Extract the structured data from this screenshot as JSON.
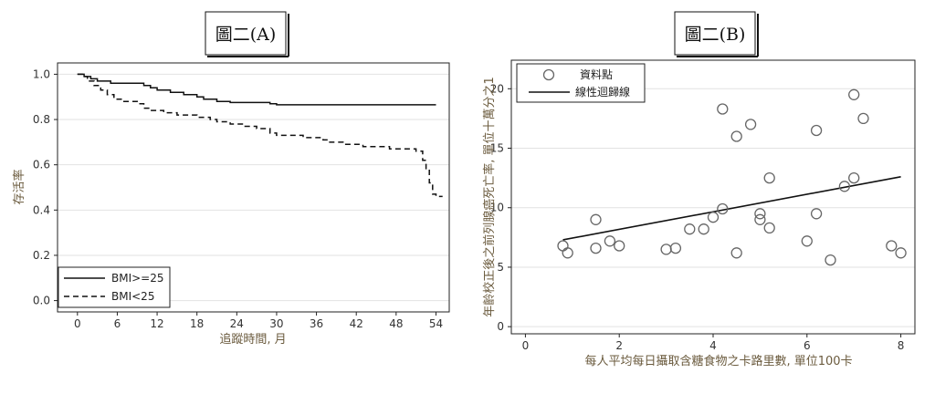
{
  "chart_data": [
    {
      "type": "line",
      "title": "圖二(A)",
      "xlabel": "追蹤時間, 月",
      "ylabel": "存活率",
      "xlim": [
        -3,
        56
      ],
      "ylim": [
        -0.05,
        1.05
      ],
      "x_ticks": [
        0,
        6,
        12,
        18,
        24,
        30,
        36,
        42,
        48,
        54
      ],
      "y_ticks": [
        0.0,
        0.2,
        0.4,
        0.6,
        0.8,
        1.0
      ],
      "y_tick_labels": [
        "0.0",
        "0.2",
        "0.4",
        "0.6",
        "0.8",
        "1.0"
      ],
      "grid": true,
      "legend_position": "bottom-left",
      "series": [
        {
          "name": "BMI>=25",
          "style": "solid",
          "points": [
            [
              0,
              1.0
            ],
            [
              1,
              1.0
            ],
            [
              1,
              0.99
            ],
            [
              2,
              0.99
            ],
            [
              2,
              0.98
            ],
            [
              3,
              0.98
            ],
            [
              3,
              0.97
            ],
            [
              5,
              0.97
            ],
            [
              5,
              0.96
            ],
            [
              10,
              0.96
            ],
            [
              10,
              0.95
            ],
            [
              11,
              0.95
            ],
            [
              11,
              0.94
            ],
            [
              12,
              0.94
            ],
            [
              12,
              0.93
            ],
            [
              14,
              0.93
            ],
            [
              14,
              0.92
            ],
            [
              16,
              0.92
            ],
            [
              16,
              0.91
            ],
            [
              18,
              0.91
            ],
            [
              18,
              0.9
            ],
            [
              19,
              0.9
            ],
            [
              19,
              0.89
            ],
            [
              21,
              0.89
            ],
            [
              21,
              0.88
            ],
            [
              23,
              0.88
            ],
            [
              23,
              0.875
            ],
            [
              29,
              0.875
            ],
            [
              29,
              0.87
            ],
            [
              30,
              0.87
            ],
            [
              30,
              0.865
            ],
            [
              54,
              0.865
            ]
          ]
        },
        {
          "name": "BMI<25",
          "style": "dashed",
          "points": [
            [
              0,
              1.0
            ],
            [
              1,
              1.0
            ],
            [
              1,
              0.99
            ],
            [
              1.5,
              0.99
            ],
            [
              1.5,
              0.97
            ],
            [
              2.5,
              0.97
            ],
            [
              2.5,
              0.95
            ],
            [
              3.5,
              0.95
            ],
            [
              3.5,
              0.93
            ],
            [
              4.5,
              0.93
            ],
            [
              4.5,
              0.91
            ],
            [
              5.5,
              0.91
            ],
            [
              5.5,
              0.89
            ],
            [
              7,
              0.89
            ],
            [
              7,
              0.88
            ],
            [
              9,
              0.88
            ],
            [
              9,
              0.87
            ],
            [
              10,
              0.87
            ],
            [
              10,
              0.85
            ],
            [
              11,
              0.85
            ],
            [
              11,
              0.84
            ],
            [
              13,
              0.84
            ],
            [
              13,
              0.83
            ],
            [
              15,
              0.83
            ],
            [
              15,
              0.82
            ],
            [
              18,
              0.82
            ],
            [
              18,
              0.81
            ],
            [
              20,
              0.81
            ],
            [
              20,
              0.8
            ],
            [
              21,
              0.8
            ],
            [
              21,
              0.79
            ],
            [
              23,
              0.79
            ],
            [
              23,
              0.78
            ],
            [
              25,
              0.78
            ],
            [
              25,
              0.77
            ],
            [
              27,
              0.77
            ],
            [
              27,
              0.76
            ],
            [
              29,
              0.76
            ],
            [
              29,
              0.74
            ],
            [
              30,
              0.74
            ],
            [
              30,
              0.73
            ],
            [
              34,
              0.73
            ],
            [
              34,
              0.72
            ],
            [
              37,
              0.72
            ],
            [
              37,
              0.71
            ],
            [
              38,
              0.71
            ],
            [
              38,
              0.7
            ],
            [
              40,
              0.7
            ],
            [
              40,
              0.69
            ],
            [
              43,
              0.69
            ],
            [
              43,
              0.68
            ],
            [
              47,
              0.68
            ],
            [
              47,
              0.67
            ],
            [
              51,
              0.67
            ],
            [
              51,
              0.66
            ],
            [
              52,
              0.66
            ],
            [
              52,
              0.62
            ],
            [
              52.5,
              0.62
            ],
            [
              52.5,
              0.58
            ],
            [
              53,
              0.58
            ],
            [
              53,
              0.52
            ],
            [
              53.5,
              0.52
            ],
            [
              53.5,
              0.47
            ],
            [
              54,
              0.47
            ],
            [
              54,
              0.46
            ],
            [
              55,
              0.46
            ]
          ]
        }
      ]
    },
    {
      "type": "scatter",
      "title": "圖二(B)",
      "xlabel": "每人平均每日攝取含糖食物之卡路里數, 單位100卡",
      "ylabel": "年齡校正後之前列腺癌死亡率, 單位十萬分之1",
      "xlim": [
        -0.3,
        8.3
      ],
      "ylim": [
        -0.6,
        22.4
      ],
      "x_ticks": [
        0,
        2,
        4,
        6,
        8
      ],
      "y_ticks": [
        0,
        5,
        10,
        15,
        20
      ],
      "grid": true,
      "legend_position": "top-left",
      "series": [
        {
          "name": "資料點",
          "style": "hollow-circle",
          "points": [
            [
              0.8,
              6.8
            ],
            [
              0.9,
              6.2
            ],
            [
              1.5,
              9.0
            ],
            [
              1.5,
              6.6
            ],
            [
              1.8,
              7.2
            ],
            [
              2.0,
              6.8
            ],
            [
              3.0,
              6.5
            ],
            [
              3.2,
              6.6
            ],
            [
              3.5,
              8.2
            ],
            [
              3.8,
              8.2
            ],
            [
              4.0,
              9.2
            ],
            [
              4.2,
              9.9
            ],
            [
              4.2,
              18.3
            ],
            [
              4.5,
              6.2
            ],
            [
              4.5,
              16.0
            ],
            [
              4.8,
              17.0
            ],
            [
              5.0,
              9.5
            ],
            [
              5.0,
              9.0
            ],
            [
              5.2,
              8.3
            ],
            [
              5.2,
              12.5
            ],
            [
              6.0,
              7.2
            ],
            [
              6.2,
              16.5
            ],
            [
              6.2,
              9.5
            ],
            [
              6.5,
              5.6
            ],
            [
              6.8,
              11.8
            ],
            [
              7.0,
              12.5
            ],
            [
              7.0,
              19.5
            ],
            [
              7.2,
              17.5
            ],
            [
              7.8,
              6.8
            ],
            [
              8.0,
              6.2
            ]
          ]
        },
        {
          "name": "線性迴歸線",
          "style": "line",
          "points": [
            [
              0.8,
              7.3
            ],
            [
              8.0,
              12.6
            ]
          ]
        }
      ]
    }
  ]
}
